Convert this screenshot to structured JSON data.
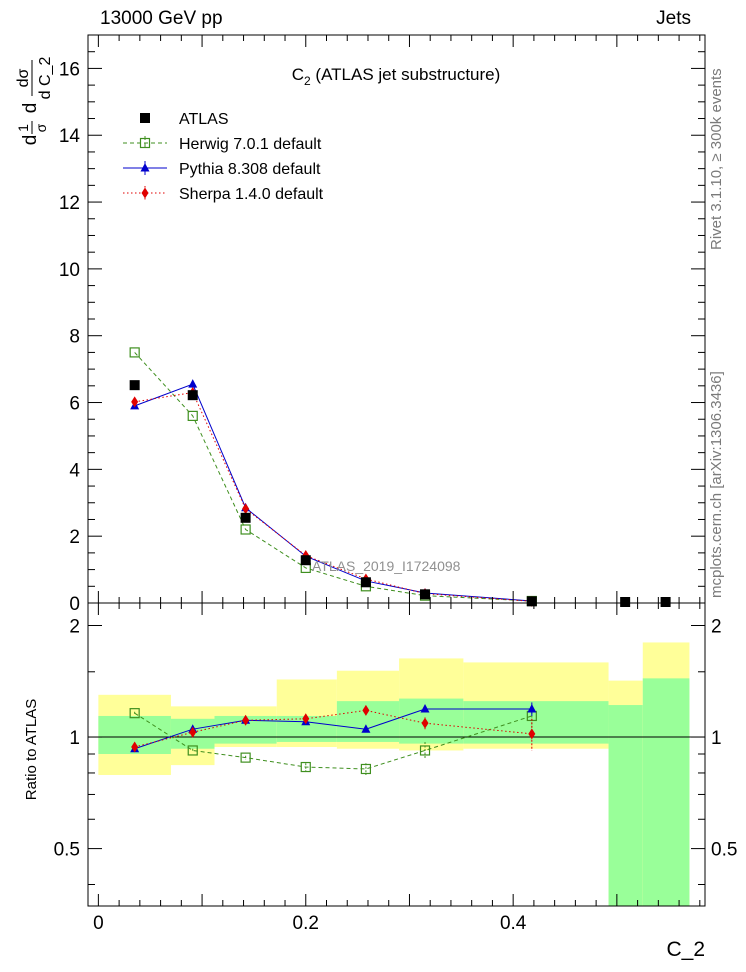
{
  "header": {
    "left": "13000 GeV pp",
    "right": "Jets"
  },
  "side_text": {
    "rivet": "Rivet 3.1.10, ≥ 300k events",
    "mcplots": "mcplots.cern.ch [arXiv:1306.3436]"
  },
  "chart_data": {
    "type": "scatter",
    "title": "C₂ (ATLAS jet substructure)",
    "title_main": "C",
    "title_sub": "2",
    "title_rest": " (ATLAS jet substructure)",
    "watermark": "ATLAS_2019_I1724098",
    "xlabel": "C_2",
    "ylabel_main": {
      "parts": [
        "d",
        "1",
        "σ",
        "d",
        "dσ",
        "d C_2"
      ],
      "full": "1/σ dσ/d C_2"
    },
    "ylabel_ratio": "Ratio to ATLAS",
    "xlim": [
      -0.01,
      0.585
    ],
    "ylim_main": [
      0,
      17
    ],
    "ylim_ratio": [
      0.35,
      2.3
    ],
    "x_ticks": [
      0,
      0.2,
      0.4
    ],
    "x_tick_labels": [
      "0",
      "0.2",
      "0.4"
    ],
    "y_ticks_main": [
      0,
      2,
      4,
      6,
      8,
      10,
      12,
      14,
      16
    ],
    "y_tick_labels_main": [
      "0",
      "2",
      "4",
      "6",
      "8",
      "10",
      "12",
      "14",
      "16"
    ],
    "y_ticks_ratio": [
      0.5,
      1,
      2
    ],
    "y_tick_labels_ratio": [
      "0.5",
      "1",
      "2"
    ],
    "legend_position": "top-left",
    "bin_edges": [
      0,
      0.07,
      0.112,
      0.172,
      0.23,
      0.29,
      0.352,
      0.492,
      0.525,
      0.57
    ],
    "x": [
      0.035,
      0.091,
      0.142,
      0.2,
      0.258,
      0.315,
      0.418,
      0.508,
      0.547
    ],
    "series": [
      {
        "name": "ATLAS",
        "color": "#000000",
        "marker": "square-filled",
        "line": "none",
        "x": [
          0.035,
          0.091,
          0.142,
          0.2,
          0.258,
          0.315,
          0.418,
          0.508,
          0.547
        ],
        "values": [
          6.52,
          6.22,
          2.55,
          1.28,
          0.62,
          0.26,
          0.05,
          0.0,
          0.0
        ]
      },
      {
        "name": "Herwig 7.0.1 default",
        "color": "#3f8f1f",
        "marker": "square-open",
        "line": "dashed",
        "x": [
          0.035,
          0.091,
          0.142,
          0.2,
          0.258,
          0.315,
          0.418
        ],
        "values": [
          7.5,
          5.6,
          2.2,
          1.05,
          0.5,
          0.22,
          0.06
        ]
      },
      {
        "name": "Pythia 8.308 default",
        "color": "#0000cc",
        "marker": "triangle-filled",
        "line": "solid",
        "x": [
          0.035,
          0.091,
          0.142,
          0.2,
          0.258,
          0.315,
          0.418
        ],
        "values": [
          5.9,
          6.55,
          2.85,
          1.4,
          0.66,
          0.3,
          0.06
        ]
      },
      {
        "name": "Sherpa 1.4.0 default",
        "color": "#e00000",
        "marker": "diamond-filled",
        "line": "dotted",
        "x": [
          0.035,
          0.091,
          0.142,
          0.2,
          0.258,
          0.315,
          0.418
        ],
        "values": [
          6.02,
          6.3,
          2.82,
          1.42,
          0.72,
          0.28,
          0.05
        ]
      }
    ],
    "ratio_series": [
      {
        "name": "Herwig 7.0.1 default",
        "values": [
          1.16,
          0.92,
          0.88,
          0.83,
          0.82,
          0.92,
          1.14
        ],
        "errors": [
          0.01,
          0.01,
          0.01,
          0.02,
          0.03,
          0.05,
          0.08
        ]
      },
      {
        "name": "Pythia 8.308 default",
        "values": [
          0.93,
          1.05,
          1.11,
          1.1,
          1.05,
          1.19,
          1.19
        ],
        "errors": [
          0.0,
          0.0,
          0.0,
          0.0,
          0.0,
          0.0,
          0.05
        ]
      },
      {
        "name": "Sherpa 1.4.0 default",
        "values": [
          0.94,
          1.03,
          1.11,
          1.12,
          1.18,
          1.09,
          1.02
        ],
        "errors": [
          0.01,
          0.01,
          0.01,
          0.02,
          0.03,
          0.04,
          0.1
        ]
      }
    ],
    "ratio_bands": {
      "green_color": "#99ff99",
      "yellow_color": "#ffff99",
      "green": [
        [
          0.9,
          1.14
        ],
        [
          0.93,
          1.12
        ],
        [
          0.96,
          1.14
        ],
        [
          0.97,
          1.14
        ],
        [
          0.97,
          1.25
        ],
        [
          0.96,
          1.27
        ],
        [
          0.96,
          1.25
        ],
        [
          0.35,
          1.22
        ],
        [
          0.35,
          1.44
        ]
      ],
      "yellow": [
        [
          0.79,
          1.3
        ],
        [
          0.84,
          1.21
        ],
        [
          0.94,
          1.21
        ],
        [
          0.94,
          1.43
        ],
        [
          0.93,
          1.51
        ],
        [
          0.92,
          1.63
        ],
        [
          0.93,
          1.59
        ],
        [
          0.35,
          1.42
        ],
        [
          0.35,
          1.8
        ]
      ]
    }
  }
}
